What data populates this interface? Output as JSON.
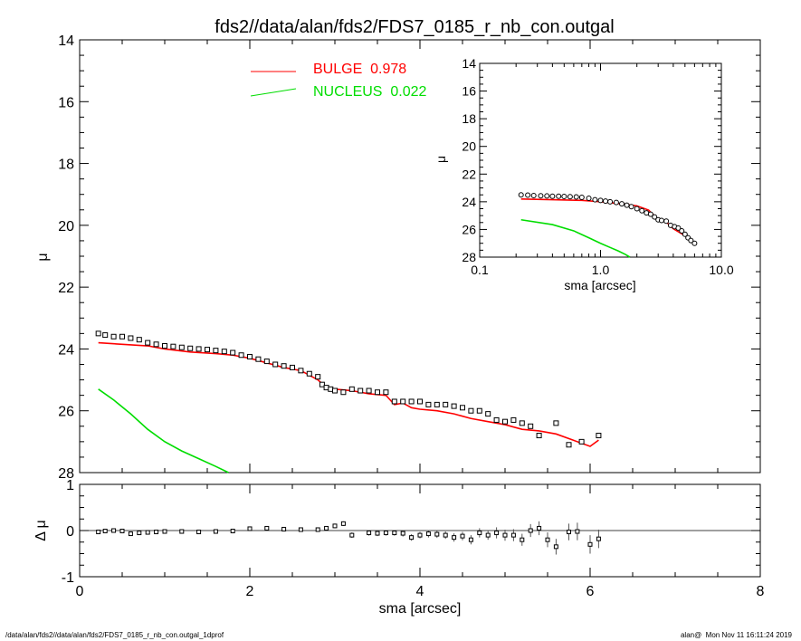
{
  "title": "fds2//data/alan/fds2/FDS7_0185_r_nb_con.outgal",
  "footer": {
    "left": "/data/alan/fds2//data/alan/fds2/FDS7_0185_r_nb_con.outgal_1dprof",
    "right": "alan@  Mon Nov 11 16:11:24 2019"
  },
  "colors": {
    "data": "#000000",
    "bulge": "#ff0000",
    "nucleus": "#00dd00",
    "zero_line": "#000000"
  },
  "chart_data": [
    {
      "name": "main-profile",
      "type": "scatter",
      "xlabel": "",
      "ylabel": "μ",
      "xlim": [
        0,
        8
      ],
      "ylim": [
        28,
        14
      ],
      "y_inverted": true,
      "x_ticks": [
        "0",
        "2",
        "4",
        "6",
        "8"
      ],
      "y_ticks": [
        "14",
        "16",
        "18",
        "20",
        "22",
        "24",
        "26",
        "28"
      ],
      "legend": [
        {
          "label": "BULGE  0.978",
          "color": "#ff0000"
        },
        {
          "label": "NUCLEUS  0.022",
          "color": "#00dd00"
        }
      ],
      "legend_position": "top-left",
      "series": [
        {
          "type": "scatter",
          "role": "data",
          "x": [
            0.22,
            0.3,
            0.4,
            0.5,
            0.6,
            0.7,
            0.8,
            0.9,
            1.0,
            1.1,
            1.2,
            1.3,
            1.4,
            1.5,
            1.6,
            1.7,
            1.8,
            1.9,
            2.0,
            2.1,
            2.2,
            2.3,
            2.4,
            2.5,
            2.6,
            2.7,
            2.8,
            2.85,
            2.9,
            2.95,
            3.0,
            3.1,
            3.2,
            3.3,
            3.4,
            3.5,
            3.6,
            3.7,
            3.8,
            3.9,
            4.0,
            4.1,
            4.2,
            4.3,
            4.4,
            4.5,
            4.6,
            4.7,
            4.8,
            4.9,
            5.0,
            5.1,
            5.2,
            5.3,
            5.4,
            5.6,
            5.75,
            5.9,
            6.1
          ],
          "y": [
            23.5,
            23.55,
            23.6,
            23.6,
            23.65,
            23.7,
            23.8,
            23.85,
            23.9,
            23.92,
            23.95,
            23.98,
            24.0,
            24.02,
            24.05,
            24.08,
            24.12,
            24.2,
            24.25,
            24.33,
            24.4,
            24.5,
            24.55,
            24.6,
            24.7,
            24.8,
            24.9,
            25.15,
            25.25,
            25.3,
            25.35,
            25.4,
            25.3,
            25.35,
            25.35,
            25.4,
            25.4,
            25.7,
            25.7,
            25.7,
            25.7,
            25.8,
            25.8,
            25.8,
            25.85,
            25.9,
            26.0,
            26.0,
            26.1,
            26.3,
            26.35,
            26.3,
            26.4,
            26.5,
            26.8,
            26.4,
            27.1,
            27.0,
            26.8
          ]
        },
        {
          "type": "line",
          "role": "bulge",
          "x": [
            0.22,
            0.5,
            0.8,
            1.0,
            1.3,
            1.6,
            1.8,
            2.0,
            2.2,
            2.4,
            2.6,
            2.8,
            2.9,
            3.0,
            3.2,
            3.4,
            3.6,
            3.7,
            3.8,
            3.9,
            4.0,
            4.2,
            4.4,
            4.6,
            4.8,
            5.0,
            5.2,
            5.4,
            5.6,
            5.8,
            6.0,
            6.1
          ],
          "y": [
            23.8,
            23.85,
            23.9,
            24.0,
            24.1,
            24.15,
            24.2,
            24.3,
            24.45,
            24.6,
            24.7,
            25.0,
            25.25,
            25.3,
            25.35,
            25.45,
            25.5,
            25.8,
            25.75,
            25.9,
            25.95,
            26.0,
            26.1,
            26.25,
            26.35,
            26.45,
            26.6,
            26.65,
            26.75,
            26.95,
            27.15,
            26.95
          ]
        },
        {
          "type": "line",
          "role": "nucleus",
          "x": [
            0.22,
            0.4,
            0.6,
            0.8,
            1.0,
            1.2,
            1.4,
            1.6,
            1.75
          ],
          "y": [
            25.3,
            25.65,
            26.1,
            26.6,
            27.0,
            27.3,
            27.55,
            27.8,
            28.05
          ]
        }
      ]
    },
    {
      "name": "residuals",
      "type": "scatter",
      "xlabel": "sma [arcsec]",
      "ylabel": "Δ μ",
      "xlim": [
        0,
        8
      ],
      "ylim": [
        -1,
        1
      ],
      "x_ticks": [
        "0",
        "2",
        "4",
        "6",
        "8"
      ],
      "y_ticks": [
        "-1",
        "0",
        "1"
      ],
      "series": [
        {
          "type": "scatter",
          "role": "residual",
          "x": [
            0.22,
            0.3,
            0.4,
            0.5,
            0.6,
            0.7,
            0.8,
            0.9,
            1.0,
            1.2,
            1.4,
            1.6,
            1.8,
            2.0,
            2.2,
            2.4,
            2.6,
            2.8,
            2.9,
            3.0,
            3.1,
            3.2,
            3.4,
            3.5,
            3.6,
            3.7,
            3.8,
            3.9,
            4.0,
            4.1,
            4.2,
            4.3,
            4.4,
            4.5,
            4.6,
            4.7,
            4.8,
            4.9,
            5.0,
            5.1,
            5.2,
            5.3,
            5.4,
            5.5,
            5.6,
            5.75,
            5.85,
            6.0,
            6.1
          ],
          "y": [
            -0.03,
            -0.01,
            0.0,
            -0.01,
            -0.07,
            -0.05,
            -0.04,
            -0.03,
            -0.02,
            -0.02,
            -0.03,
            -0.02,
            -0.01,
            0.04,
            0.05,
            0.03,
            0.02,
            0.02,
            0.05,
            0.1,
            0.15,
            -0.1,
            -0.05,
            -0.06,
            -0.05,
            -0.05,
            -0.06,
            -0.15,
            -0.1,
            -0.07,
            -0.08,
            -0.1,
            -0.15,
            -0.12,
            -0.2,
            -0.05,
            -0.1,
            -0.05,
            -0.1,
            -0.1,
            -0.2,
            0.0,
            0.05,
            -0.2,
            -0.35,
            -0.03,
            -0.02,
            -0.3,
            -0.18
          ],
          "err": [
            0.02,
            0.02,
            0.02,
            0.02,
            0.02,
            0.02,
            0.02,
            0.02,
            0.02,
            0.02,
            0.02,
            0.02,
            0.02,
            0.03,
            0.03,
            0.03,
            0.03,
            0.04,
            0.04,
            0.05,
            0.05,
            0.06,
            0.06,
            0.06,
            0.06,
            0.06,
            0.07,
            0.07,
            0.07,
            0.08,
            0.08,
            0.08,
            0.09,
            0.09,
            0.1,
            0.1,
            0.1,
            0.12,
            0.12,
            0.13,
            0.13,
            0.14,
            0.15,
            0.16,
            0.17,
            0.18,
            0.19,
            0.2,
            0.2
          ]
        }
      ]
    },
    {
      "name": "inset-log",
      "type": "scatter",
      "xlabel": "sma [arcsec]",
      "ylabel": "μ",
      "x_scale": "log",
      "xlim": [
        0.1,
        10.0
      ],
      "ylim": [
        28,
        14
      ],
      "y_inverted": true,
      "x_ticks": [
        "0.1",
        "1.0",
        "10.0"
      ],
      "y_ticks": [
        "14",
        "16",
        "18",
        "20",
        "22",
        "24",
        "26",
        "28"
      ],
      "series": [
        {
          "type": "scatter",
          "role": "data",
          "x": [
            0.22,
            0.25,
            0.28,
            0.32,
            0.36,
            0.4,
            0.45,
            0.5,
            0.56,
            0.63,
            0.7,
            0.8,
            0.9,
            1.0,
            1.1,
            1.2,
            1.35,
            1.5,
            1.65,
            1.8,
            2.0,
            2.2,
            2.4,
            2.6,
            2.8,
            3.0,
            3.2,
            3.5,
            3.8,
            4.1,
            4.4,
            4.7,
            5.0,
            5.3,
            5.6,
            6.0
          ],
          "y": [
            23.5,
            23.52,
            23.55,
            23.57,
            23.58,
            23.6,
            23.6,
            23.62,
            23.63,
            23.65,
            23.68,
            23.75,
            23.85,
            23.9,
            23.95,
            24.0,
            24.05,
            24.15,
            24.25,
            24.35,
            24.5,
            24.65,
            24.8,
            24.9,
            25.1,
            25.3,
            25.35,
            25.4,
            25.7,
            25.8,
            25.9,
            26.1,
            26.35,
            26.6,
            26.8,
            27.0
          ]
        },
        {
          "type": "line",
          "role": "bulge",
          "x": [
            0.22,
            0.4,
            0.7,
            1.0,
            1.5,
            2.0,
            2.5,
            3.0,
            3.5,
            4.0,
            5.0,
            6.0
          ],
          "y": [
            23.8,
            23.85,
            23.9,
            24.0,
            24.15,
            24.3,
            24.6,
            25.3,
            25.45,
            25.95,
            26.45,
            26.95
          ]
        },
        {
          "type": "line",
          "role": "nucleus",
          "x": [
            0.22,
            0.4,
            0.6,
            0.8,
            1.0,
            1.2,
            1.4,
            1.6,
            1.75
          ],
          "y": [
            25.3,
            25.65,
            26.1,
            26.6,
            27.0,
            27.3,
            27.55,
            27.8,
            28.05
          ]
        }
      ]
    }
  ]
}
